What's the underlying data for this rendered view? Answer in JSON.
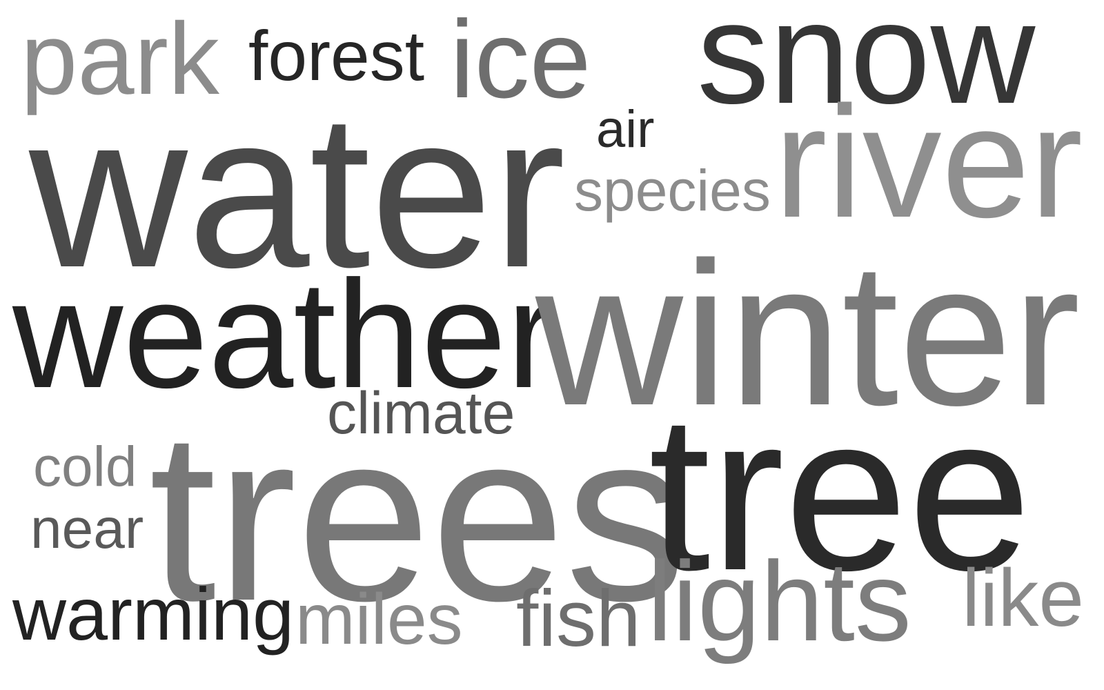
{
  "word_cloud": {
    "words": [
      {
        "text": "park",
        "color": "#8c8c8c"
      },
      {
        "text": "forest",
        "color": "#262626"
      },
      {
        "text": "ice",
        "color": "#6e6e6e"
      },
      {
        "text": "snow",
        "color": "#363636"
      },
      {
        "text": "air",
        "color": "#2a2a2a"
      },
      {
        "text": "water",
        "color": "#4a4a4a"
      },
      {
        "text": "species",
        "color": "#8c8c8c"
      },
      {
        "text": "river",
        "color": "#8f8f8f"
      },
      {
        "text": "weather",
        "color": "#222222"
      },
      {
        "text": "winter",
        "color": "#7a7a7a"
      },
      {
        "text": "climate",
        "color": "#555555"
      },
      {
        "text": "cold",
        "color": "#808080"
      },
      {
        "text": "trees",
        "color": "#787878"
      },
      {
        "text": "tree",
        "color": "#2a2a2a"
      },
      {
        "text": "near",
        "color": "#595959"
      },
      {
        "text": "warming",
        "color": "#222222"
      },
      {
        "text": "miles",
        "color": "#8a8a8a"
      },
      {
        "text": "fish",
        "color": "#6e6e6e"
      },
      {
        "text": "lights",
        "color": "#7d7d7d"
      },
      {
        "text": "like",
        "color": "#8a8a8a"
      }
    ]
  }
}
